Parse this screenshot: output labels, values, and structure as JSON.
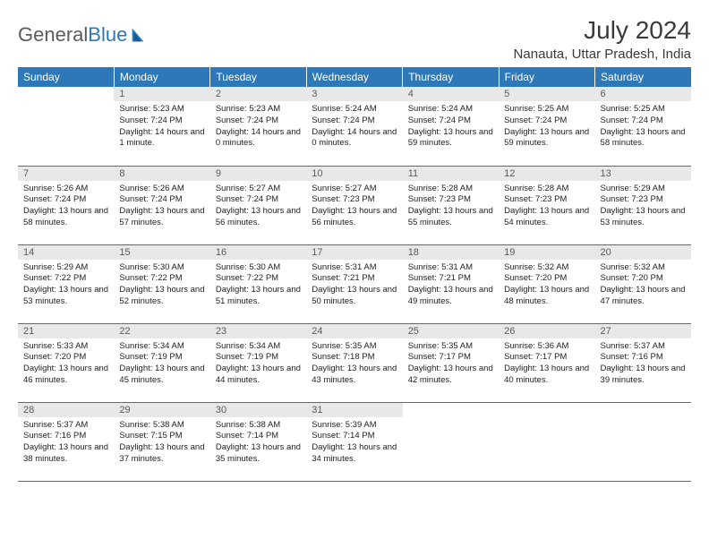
{
  "brand": {
    "part1": "General",
    "part2": "Blue"
  },
  "title": "July 2024",
  "location": "Nanauta, Uttar Pradesh, India",
  "colors": {
    "header_bg": "#2e78b7",
    "header_text": "#ffffff",
    "daynum_bg": "#e8e8e8",
    "daynum_text": "#5a5a5a",
    "border": "#2e78b7",
    "body_text": "#222222",
    "title_text": "#3a3a3a",
    "logo_gray": "#5a5a5a",
    "logo_blue": "#2e78b7"
  },
  "typography": {
    "title_fontsize": 28,
    "location_fontsize": 15,
    "dayheader_fontsize": 12,
    "daynum_fontsize": 11,
    "content_fontsize": 9.5
  },
  "day_headers": [
    "Sunday",
    "Monday",
    "Tuesday",
    "Wednesday",
    "Thursday",
    "Friday",
    "Saturday"
  ],
  "weeks": [
    [
      null,
      {
        "n": "1",
        "sunrise": "5:23 AM",
        "sunset": "7:24 PM",
        "daylight": "14 hours and 1 minute."
      },
      {
        "n": "2",
        "sunrise": "5:23 AM",
        "sunset": "7:24 PM",
        "daylight": "14 hours and 0 minutes."
      },
      {
        "n": "3",
        "sunrise": "5:24 AM",
        "sunset": "7:24 PM",
        "daylight": "14 hours and 0 minutes."
      },
      {
        "n": "4",
        "sunrise": "5:24 AM",
        "sunset": "7:24 PM",
        "daylight": "13 hours and 59 minutes."
      },
      {
        "n": "5",
        "sunrise": "5:25 AM",
        "sunset": "7:24 PM",
        "daylight": "13 hours and 59 minutes."
      },
      {
        "n": "6",
        "sunrise": "5:25 AM",
        "sunset": "7:24 PM",
        "daylight": "13 hours and 58 minutes."
      }
    ],
    [
      {
        "n": "7",
        "sunrise": "5:26 AM",
        "sunset": "7:24 PM",
        "daylight": "13 hours and 58 minutes."
      },
      {
        "n": "8",
        "sunrise": "5:26 AM",
        "sunset": "7:24 PM",
        "daylight": "13 hours and 57 minutes."
      },
      {
        "n": "9",
        "sunrise": "5:27 AM",
        "sunset": "7:24 PM",
        "daylight": "13 hours and 56 minutes."
      },
      {
        "n": "10",
        "sunrise": "5:27 AM",
        "sunset": "7:23 PM",
        "daylight": "13 hours and 56 minutes."
      },
      {
        "n": "11",
        "sunrise": "5:28 AM",
        "sunset": "7:23 PM",
        "daylight": "13 hours and 55 minutes."
      },
      {
        "n": "12",
        "sunrise": "5:28 AM",
        "sunset": "7:23 PM",
        "daylight": "13 hours and 54 minutes."
      },
      {
        "n": "13",
        "sunrise": "5:29 AM",
        "sunset": "7:23 PM",
        "daylight": "13 hours and 53 minutes."
      }
    ],
    [
      {
        "n": "14",
        "sunrise": "5:29 AM",
        "sunset": "7:22 PM",
        "daylight": "13 hours and 53 minutes."
      },
      {
        "n": "15",
        "sunrise": "5:30 AM",
        "sunset": "7:22 PM",
        "daylight": "13 hours and 52 minutes."
      },
      {
        "n": "16",
        "sunrise": "5:30 AM",
        "sunset": "7:22 PM",
        "daylight": "13 hours and 51 minutes."
      },
      {
        "n": "17",
        "sunrise": "5:31 AM",
        "sunset": "7:21 PM",
        "daylight": "13 hours and 50 minutes."
      },
      {
        "n": "18",
        "sunrise": "5:31 AM",
        "sunset": "7:21 PM",
        "daylight": "13 hours and 49 minutes."
      },
      {
        "n": "19",
        "sunrise": "5:32 AM",
        "sunset": "7:20 PM",
        "daylight": "13 hours and 48 minutes."
      },
      {
        "n": "20",
        "sunrise": "5:32 AM",
        "sunset": "7:20 PM",
        "daylight": "13 hours and 47 minutes."
      }
    ],
    [
      {
        "n": "21",
        "sunrise": "5:33 AM",
        "sunset": "7:20 PM",
        "daylight": "13 hours and 46 minutes."
      },
      {
        "n": "22",
        "sunrise": "5:34 AM",
        "sunset": "7:19 PM",
        "daylight": "13 hours and 45 minutes."
      },
      {
        "n": "23",
        "sunrise": "5:34 AM",
        "sunset": "7:19 PM",
        "daylight": "13 hours and 44 minutes."
      },
      {
        "n": "24",
        "sunrise": "5:35 AM",
        "sunset": "7:18 PM",
        "daylight": "13 hours and 43 minutes."
      },
      {
        "n": "25",
        "sunrise": "5:35 AM",
        "sunset": "7:17 PM",
        "daylight": "13 hours and 42 minutes."
      },
      {
        "n": "26",
        "sunrise": "5:36 AM",
        "sunset": "7:17 PM",
        "daylight": "13 hours and 40 minutes."
      },
      {
        "n": "27",
        "sunrise": "5:37 AM",
        "sunset": "7:16 PM",
        "daylight": "13 hours and 39 minutes."
      }
    ],
    [
      {
        "n": "28",
        "sunrise": "5:37 AM",
        "sunset": "7:16 PM",
        "daylight": "13 hours and 38 minutes."
      },
      {
        "n": "29",
        "sunrise": "5:38 AM",
        "sunset": "7:15 PM",
        "daylight": "13 hours and 37 minutes."
      },
      {
        "n": "30",
        "sunrise": "5:38 AM",
        "sunset": "7:14 PM",
        "daylight": "13 hours and 35 minutes."
      },
      {
        "n": "31",
        "sunrise": "5:39 AM",
        "sunset": "7:14 PM",
        "daylight": "13 hours and 34 minutes."
      },
      null,
      null,
      null
    ]
  ],
  "labels": {
    "sunrise": "Sunrise:",
    "sunset": "Sunset:",
    "daylight": "Daylight:"
  }
}
